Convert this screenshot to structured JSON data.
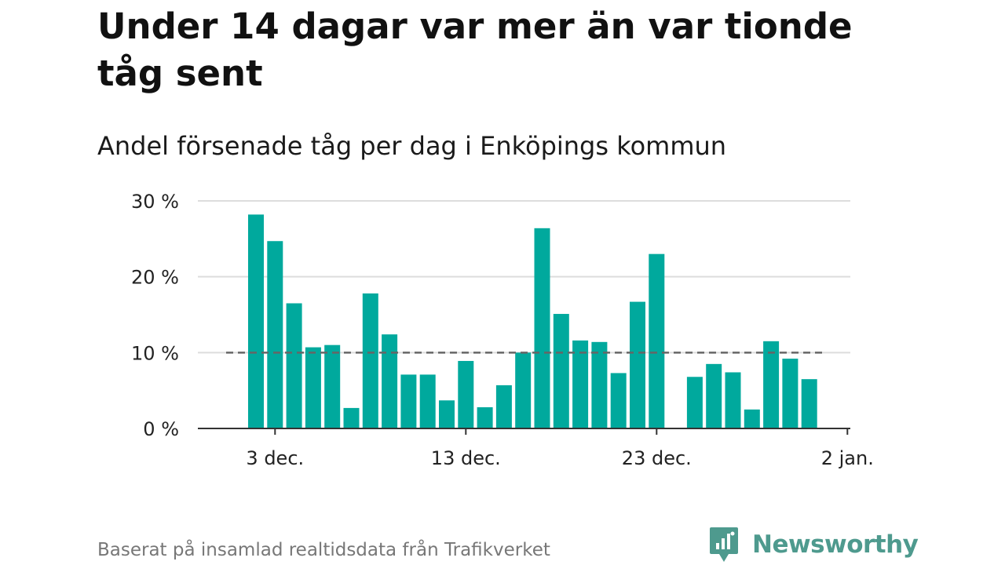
{
  "title": "Under 14 dagar var mer än var tionde tåg sent",
  "subtitle": "Andel försenade tåg per dag i Enköpings kommun",
  "footer": {
    "source": "Baserat på insamlad realtidsdata från Trafikverket",
    "brand": "Newsworthy"
  },
  "colors": {
    "bar": "#00a99d",
    "reference_line": "#666666",
    "grid": "#dddddd",
    "axis": "#333333",
    "brand": "#4e9a8e"
  },
  "chart_data": {
    "type": "bar",
    "title": "Under 14 dagar var mer än var tionde tåg sent",
    "subtitle": "Andel försenade tåg per dag i Enköpings kommun",
    "xlabel": "",
    "ylabel": "",
    "x": [
      "2 dec.",
      "3 dec.",
      "4 dec.",
      "5 dec.",
      "6 dec.",
      "7 dec.",
      "8 dec.",
      "9 dec.",
      "10 dec.",
      "11 dec.",
      "12 dec.",
      "13 dec.",
      "14 dec.",
      "15 dec.",
      "16 dec.",
      "17 dec.",
      "18 dec.",
      "19 dec.",
      "20 dec.",
      "21 dec.",
      "22 dec.",
      "23 dec.",
      "24 dec.",
      "25 dec.",
      "26 dec.",
      "27 dec.",
      "28 dec.",
      "29 dec.",
      "30 dec.",
      "31 dec."
    ],
    "values": [
      28.2,
      24.7,
      16.5,
      10.7,
      11.0,
      2.7,
      17.8,
      12.4,
      7.1,
      7.1,
      3.7,
      8.9,
      2.8,
      5.7,
      10.0,
      26.4,
      15.1,
      11.6,
      11.4,
      7.3,
      16.7,
      23.0,
      0,
      6.8,
      8.5,
      7.4,
      2.5,
      11.5,
      9.2,
      6.5
    ],
    "ylim": [
      0,
      30
    ],
    "y_ticks": [
      0,
      10,
      20,
      30
    ],
    "y_tick_labels": [
      "0 %",
      "10 %",
      "20 %",
      "30 %"
    ],
    "x_ticks": [
      "3 dec.",
      "13 dec.",
      "23 dec.",
      "2 jan."
    ],
    "reference_line": {
      "value": 10,
      "style": "dashed"
    },
    "grid": true,
    "legend": "none"
  }
}
